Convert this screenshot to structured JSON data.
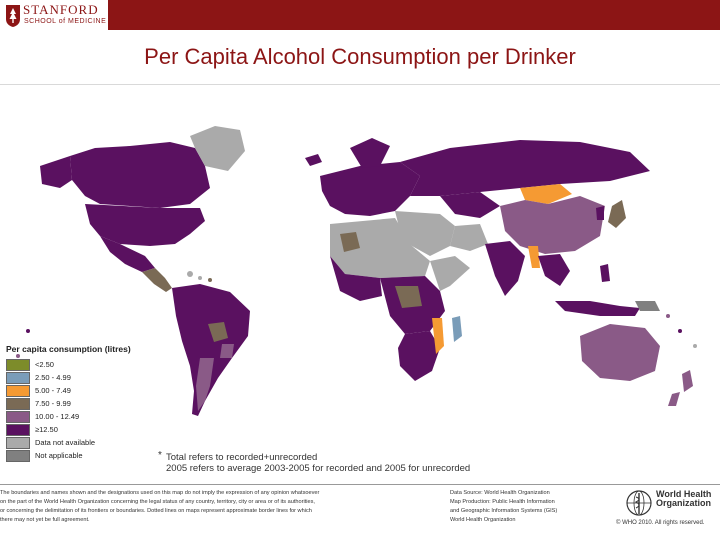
{
  "header": {
    "logo_name": "STANFORD",
    "logo_sub": "SCHOOL of MEDICINE",
    "title": "Per Capita Alcohol Consumption per Drinker"
  },
  "legend": {
    "title": "Per capita consumption (litres)",
    "items": [
      {
        "label": "<2.50",
        "color": "#7d8c2a"
      },
      {
        "label": "2.50 - 4.99",
        "color": "#7a9cb8"
      },
      {
        "label": "5.00 - 7.49",
        "color": "#f59a33"
      },
      {
        "label": "7.50 - 9.99",
        "color": "#7a6a55"
      },
      {
        "label": "10.00 - 12.49",
        "color": "#8a5a87"
      },
      {
        "label": "≥12.50",
        "color": "#5a1160"
      },
      {
        "label": "Data not available",
        "color": "#aaaaaa"
      },
      {
        "label": "Not applicable",
        "color": "#808080"
      }
    ]
  },
  "notes": {
    "line1": "Total refers to recorded+unrecorded",
    "line2": "2005 refers to average 2003-2005 for recorded and 2005 for unrecorded"
  },
  "footer": {
    "disclaimer": [
      "The boundaries and names shown and the designations used on this map do not imply the expression of any opinion whatsoever",
      "on the part of the World Health Organization concerning the legal status of any country, territory, city or area or of its authorities,",
      "or concerning the delimitation of its frontiers or boundaries. Dotted lines on maps represent approximate border lines for which",
      "there may not yet be full agreement."
    ],
    "datasource": [
      "Data Source: World Health Organization",
      "Map Production: Public Health Information",
      "and Geographic Information Systems (GIS)",
      "World Health Organization"
    ],
    "who_name_1": "World Health",
    "who_name_2": "Organization",
    "copyright": "© WHO 2010. All rights reserved."
  },
  "colors": {
    "brand": "#8c1515",
    "very_high": "#5a1160",
    "high": "#8a5a87",
    "medium": "#7a6a55",
    "low_mid": "#f59a33",
    "low": "#7a9cb8",
    "na": "#aaaaaa"
  },
  "icons": {
    "logo": "stanford-tree-icon",
    "who": "who-emblem-icon"
  }
}
